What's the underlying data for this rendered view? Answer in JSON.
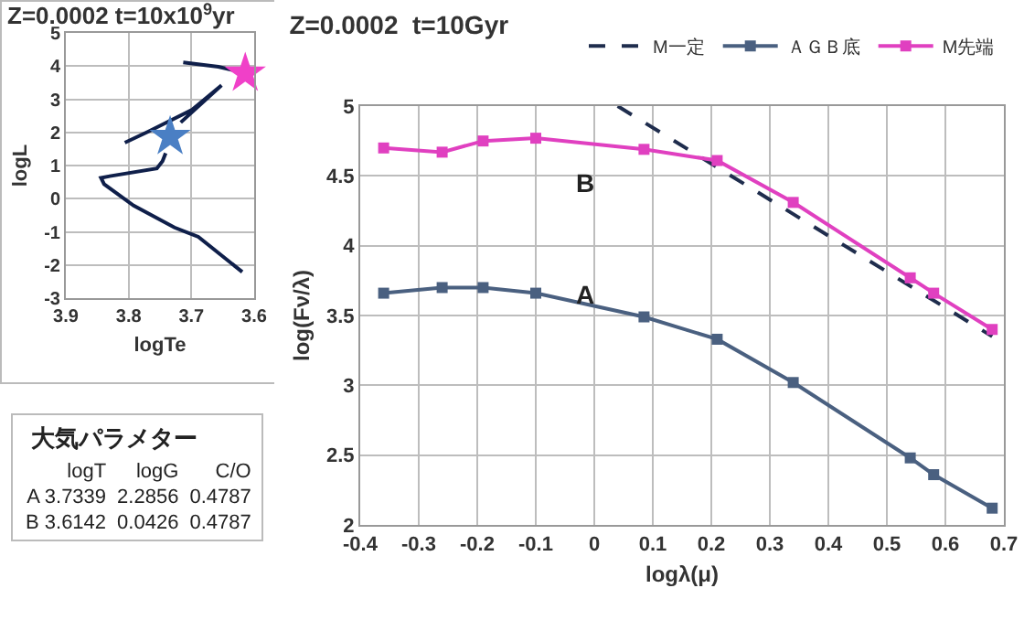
{
  "chart_data": [
    {
      "type": "line",
      "title": "Z=0.0002 t=10x10$^{9}$yr",
      "xlabel": "logTe",
      "ylabel": "logL",
      "xlim": [
        3.9,
        3.6
      ],
      "xticks": [
        3.9,
        3.8,
        3.7,
        3.6
      ],
      "ylim": [
        -3,
        5
      ],
      "yticks": [
        -3,
        -2,
        -1,
        0,
        1,
        2,
        3,
        4,
        5
      ],
      "grid": true,
      "legend": false,
      "series": [
        {
          "type": "line",
          "color": "#0f1f4a",
          "marker": "none",
          "x": [
            3.619,
            3.689,
            3.727,
            3.792,
            3.839,
            3.844,
            3.83,
            3.755,
            3.746,
            3.741,
            null,
            3.806,
            3.769,
            3.699,
            3.652,
            3.717,
            null,
            3.713,
            3.657,
            3.628
          ],
          "values": [
            -2.21,
            -1.15,
            -0.87,
            -0.21,
            0.44,
            0.63,
            0.68,
            0.91,
            1.13,
            1.37,
            null,
            1.69,
            2.02,
            2.68,
            3.42,
            2.3,
            null,
            4.11,
            3.98,
            3.85
          ]
        },
        {
          "type": "scatter",
          "color": "#4a7fc4",
          "marker": "star",
          "x": [
            3.7339
          ],
          "values": [
            1.87
          ]
        },
        {
          "type": "scatter",
          "color": "#f040c8",
          "marker": "star",
          "x": [
            3.6142
          ],
          "values": [
            3.78
          ]
        }
      ]
    },
    {
      "type": "other",
      "title": "大気パラメター",
      "annotations": [
        "logT  logG  C/O",
        "A 3.7339  2.2856  0.4787",
        "B 3.6142  0.0426  0.4787"
      ]
    },
    {
      "type": "line",
      "title": "Z=0.0002  t=10Gyr",
      "xlabel": "logλ(μ)",
      "ylabel": "log(Fν/λ)",
      "xlim": [
        -0.4,
        0.7
      ],
      "xticks": [
        -0.4,
        -0.3,
        -0.2,
        -0.1,
        0,
        0.1,
        0.2,
        0.3,
        0.4,
        0.5,
        0.6,
        0.7
      ],
      "ylim": [
        2,
        5
      ],
      "yticks": [
        2,
        2.5,
        3,
        3.5,
        4,
        4.5,
        5
      ],
      "grid": true,
      "legend": "top right",
      "annotations": [
        "A",
        "B"
      ],
      "series": [
        {
          "name": "M一定",
          "color": "#1f2d4d",
          "marker": "none",
          "line_style": "dashed",
          "x": [
            0.04,
            0.68
          ],
          "values": [
            5,
            3.35
          ]
        },
        {
          "name": "ＡＧＢ底",
          "color": "#4a6080",
          "marker": "square",
          "line_style": "solid",
          "x": [
            -0.36,
            -0.26,
            -0.19,
            -0.1,
            0.085,
            0.21,
            0.34,
            0.54,
            0.58,
            0.68
          ],
          "values": [
            3.66,
            3.7,
            3.7,
            3.66,
            3.49,
            3.33,
            3.02,
            2.48,
            2.36,
            2.12
          ]
        },
        {
          "name": "M先端",
          "color": "#e040c0",
          "marker": "square",
          "line_style": "solid",
          "x": [
            -0.36,
            -0.26,
            -0.19,
            -0.1,
            0.085,
            0.21,
            0.34,
            0.54,
            0.58,
            0.68
          ],
          "values": [
            4.7,
            4.67,
            4.75,
            4.77,
            4.69,
            4.61,
            4.31,
            3.77,
            3.66,
            3.4
          ]
        }
      ]
    }
  ]
}
